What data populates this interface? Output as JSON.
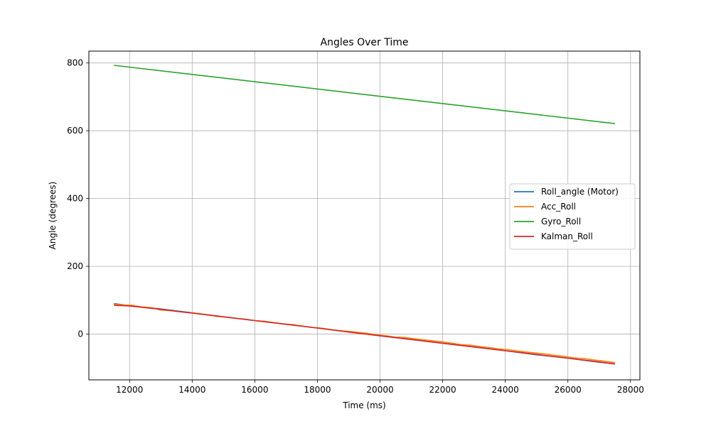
{
  "chart_data": {
    "type": "line",
    "title": "Angles Over Time",
    "xlabel": "Time (ms)",
    "ylabel": "Angle (degrees)",
    "xlim": [
      10700,
      28300
    ],
    "ylim": [
      -135,
      835
    ],
    "xticks": [
      12000,
      14000,
      16000,
      18000,
      20000,
      22000,
      24000,
      26000,
      28000
    ],
    "yticks": [
      0,
      200,
      400,
      600,
      800
    ],
    "grid": true,
    "legend_position": "center-right",
    "series": [
      {
        "name": "Roll_angle (Motor)",
        "color": "#1f77b4",
        "x": [
          11500,
          12000,
          13000,
          14000,
          15000,
          16000,
          17000,
          18000,
          19000,
          20000,
          21000,
          22000,
          23000,
          24000,
          25000,
          26000,
          27000,
          27500
        ],
        "y": [
          90,
          84,
          74,
          63,
          51,
          40,
          29,
          18,
          7,
          -5,
          -16,
          -27,
          -38,
          -49,
          -61,
          -71,
          -83,
          -88
        ]
      },
      {
        "name": "Acc_Roll",
        "color": "#ff7f0e",
        "x": [
          11500,
          11800,
          12100,
          12400,
          12700,
          13000,
          13300,
          13600,
          13900,
          14200,
          14500,
          14800,
          15100,
          15400,
          15700,
          16000,
          16300,
          16600,
          16900,
          17200,
          17500,
          17800,
          18100,
          18400,
          18700,
          19000,
          19300,
          19600,
          19900,
          20200,
          20500,
          20800,
          21100,
          21400,
          21700,
          22000,
          22300,
          22600,
          22900,
          23200,
          23500,
          23800,
          24100,
          24400,
          24700,
          25000,
          25300,
          25600,
          25900,
          26200,
          26500,
          26800,
          27100,
          27500
        ],
        "y": [
          88,
          86,
          85,
          80,
          78,
          71,
          69,
          66,
          63,
          61,
          57,
          52,
          50,
          46,
          44,
          40,
          38,
          34,
          30,
          28,
          24,
          20,
          18,
          14,
          10,
          8,
          5,
          2,
          -2,
          -5,
          -9,
          -10,
          -14,
          -17,
          -20,
          -23,
          -27,
          -31,
          -33,
          -37,
          -40,
          -44,
          -46,
          -50,
          -53,
          -56,
          -59,
          -63,
          -66,
          -70,
          -72,
          -76,
          -79,
          -84
        ]
      },
      {
        "name": "Gyro_Roll",
        "color": "#2ca02c",
        "x": [
          11500,
          27500
        ],
        "y": [
          793,
          621
        ]
      },
      {
        "name": "Kalman_Roll",
        "color": "#d62728",
        "x": [
          11500,
          12000,
          13000,
          14000,
          15000,
          16000,
          17000,
          18000,
          19000,
          20000,
          21000,
          22000,
          23000,
          24000,
          25000,
          26000,
          27000,
          27500
        ],
        "y": [
          85,
          83,
          73,
          62,
          51,
          40,
          29,
          18,
          6,
          -5,
          -16,
          -27,
          -38,
          -49,
          -60,
          -71,
          -82,
          -88
        ]
      }
    ]
  }
}
